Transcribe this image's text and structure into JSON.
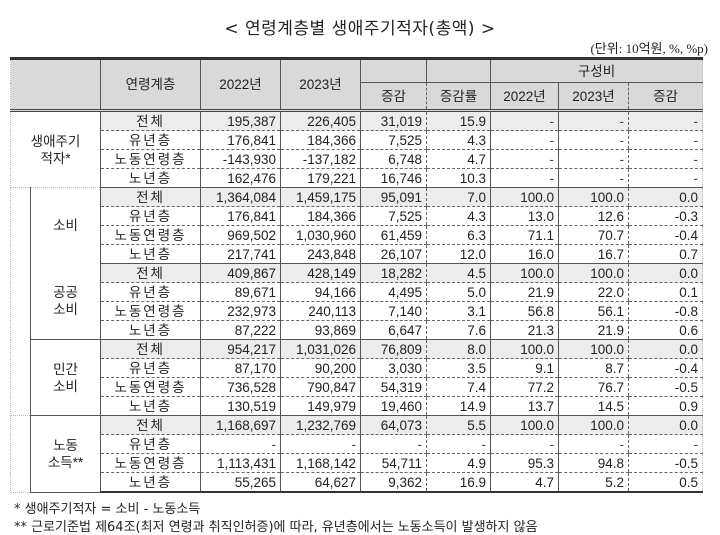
{
  "title": "< 연령계층별 생애주기적자(총액) >",
  "unit": "(단위: 10억원, %, %p)",
  "headers": {
    "age_group": "연령계층",
    "y2022": "2022년",
    "y2023": "2023년",
    "change": "증감",
    "change_rate": "증감률",
    "composition": "구성비",
    "comp_2022": "2022년",
    "comp_2023": "2023년",
    "comp_change": "증감"
  },
  "sections": [
    {
      "label_line1": "생애주기",
      "label_line2": "적자*",
      "rows": [
        {
          "age": "전체",
          "v2022": "195,387",
          "v2023": "226,405",
          "chg": "31,019",
          "rate": "15.9",
          "c2022": "-",
          "c2023": "-",
          "cchg": "-"
        },
        {
          "age": "유년층",
          "v2022": "176,841",
          "v2023": "184,366",
          "chg": "7,525",
          "rate": "4.3",
          "c2022": "-",
          "c2023": "-",
          "cchg": "-"
        },
        {
          "age": "노동연령층",
          "v2022": "-143,930",
          "v2023": "-137,182",
          "chg": "6,748",
          "rate": "4.7",
          "c2022": "-",
          "c2023": "-",
          "cchg": "-"
        },
        {
          "age": "노년층",
          "v2022": "162,476",
          "v2023": "179,221",
          "chg": "16,746",
          "rate": "10.3",
          "c2022": "-",
          "c2023": "-",
          "cchg": "-"
        }
      ]
    },
    {
      "label_line1": "소비",
      "label_line2": "",
      "rows": [
        {
          "age": "전체",
          "v2022": "1,364,084",
          "v2023": "1,459,175",
          "chg": "95,091",
          "rate": "7.0",
          "c2022": "100.0",
          "c2023": "100.0",
          "cchg": "0.0"
        },
        {
          "age": "유년층",
          "v2022": "176,841",
          "v2023": "184,366",
          "chg": "7,525",
          "rate": "4.3",
          "c2022": "13.0",
          "c2023": "12.6",
          "cchg": "-0.3"
        },
        {
          "age": "노동연령층",
          "v2022": "969,502",
          "v2023": "1,030,960",
          "chg": "61,459",
          "rate": "6.3",
          "c2022": "71.1",
          "c2023": "70.7",
          "cchg": "-0.4"
        },
        {
          "age": "노년층",
          "v2022": "217,741",
          "v2023": "243,848",
          "chg": "26,107",
          "rate": "12.0",
          "c2022": "16.0",
          "c2023": "16.7",
          "cchg": "0.7"
        }
      ]
    },
    {
      "label_line1": "공공",
      "label_line2": "소비",
      "rows": [
        {
          "age": "전체",
          "v2022": "409,867",
          "v2023": "428,149",
          "chg": "18,282",
          "rate": "4.5",
          "c2022": "100.0",
          "c2023": "100.0",
          "cchg": "0.0"
        },
        {
          "age": "유년층",
          "v2022": "89,671",
          "v2023": "94,166",
          "chg": "4,495",
          "rate": "5.0",
          "c2022": "21.9",
          "c2023": "22.0",
          "cchg": "0.1"
        },
        {
          "age": "노동연령층",
          "v2022": "232,973",
          "v2023": "240,113",
          "chg": "7,140",
          "rate": "3.1",
          "c2022": "56.8",
          "c2023": "56.1",
          "cchg": "-0.8"
        },
        {
          "age": "노년층",
          "v2022": "87,222",
          "v2023": "93,869",
          "chg": "6,647",
          "rate": "7.6",
          "c2022": "21.3",
          "c2023": "21.9",
          "cchg": "0.6"
        }
      ]
    },
    {
      "label_line1": "민간",
      "label_line2": "소비",
      "rows": [
        {
          "age": "전체",
          "v2022": "954,217",
          "v2023": "1,031,026",
          "chg": "76,809",
          "rate": "8.0",
          "c2022": "100.0",
          "c2023": "100.0",
          "cchg": "0.0"
        },
        {
          "age": "유년층",
          "v2022": "87,170",
          "v2023": "90,200",
          "chg": "3,030",
          "rate": "3.5",
          "c2022": "9.1",
          "c2023": "8.7",
          "cchg": "-0.4"
        },
        {
          "age": "노동연령층",
          "v2022": "736,528",
          "v2023": "790,847",
          "chg": "54,319",
          "rate": "7.4",
          "c2022": "77.2",
          "c2023": "76.7",
          "cchg": "-0.5"
        },
        {
          "age": "노년층",
          "v2022": "130,519",
          "v2023": "149,979",
          "chg": "19,460",
          "rate": "14.9",
          "c2022": "13.7",
          "c2023": "14.5",
          "cchg": "0.9"
        }
      ]
    },
    {
      "label_line1": "노동",
      "label_line2": "소득**",
      "rows": [
        {
          "age": "전체",
          "v2022": "1,168,697",
          "v2023": "1,232,769",
          "chg": "64,073",
          "rate": "5.5",
          "c2022": "100.0",
          "c2023": "100.0",
          "cchg": "0.0"
        },
        {
          "age": "유년층",
          "v2022": "-",
          "v2023": "-",
          "chg": "-",
          "rate": "-",
          "c2022": "-",
          "c2023": "-",
          "cchg": "-"
        },
        {
          "age": "노동연령층",
          "v2022": "1,113,431",
          "v2023": "1,168,142",
          "chg": "54,711",
          "rate": "4.9",
          "c2022": "95.3",
          "c2023": "94.8",
          "cchg": "-0.5"
        },
        {
          "age": "노년층",
          "v2022": "55,265",
          "v2023": "64,627",
          "chg": "9,362",
          "rate": "16.9",
          "c2022": "4.7",
          "c2023": "5.2",
          "cchg": "0.5"
        }
      ]
    }
  ],
  "notes": [
    "* 생애주기적자 = 소비 - 노동소득",
    "** 근로기준법 제64조(최저 연령과 취직인허증)에 따라, 유년층에서는 노동소득이 발생하지 않음"
  ]
}
